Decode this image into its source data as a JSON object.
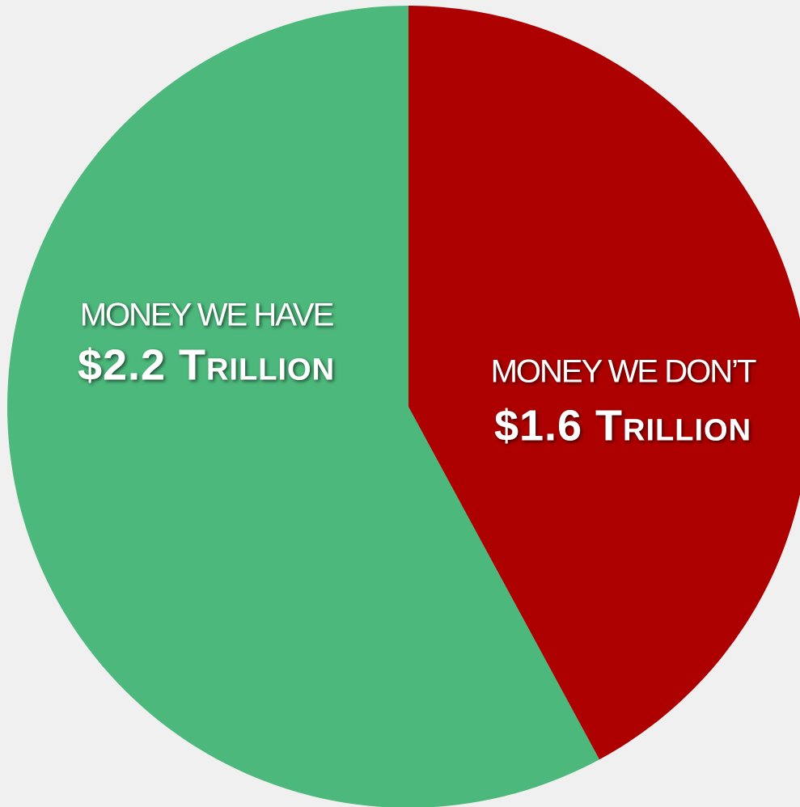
{
  "chart_data": {
    "type": "pie",
    "categories": [
      "MONEY WE HAVE",
      "MONEY WE DON’T"
    ],
    "values": [
      2.2,
      1.6
    ],
    "value_labels": [
      "$2.2 Trillion",
      "$1.6 Trillion"
    ],
    "colors": [
      "#4cb87b",
      "#ad0000"
    ]
  }
}
